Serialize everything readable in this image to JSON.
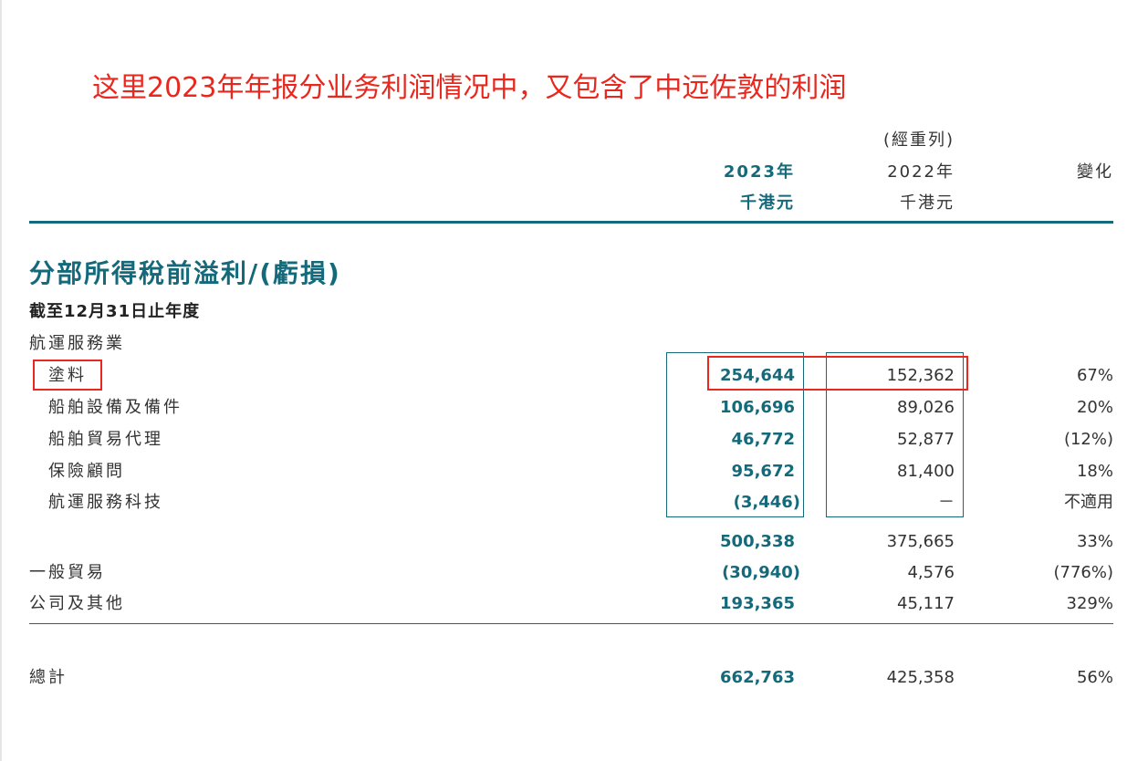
{
  "annotation": "这里2023年年报分业务利润情况中，又包含了中远佐敦的利润",
  "columns": {
    "restated_note": "(經重列)",
    "current": {
      "year": "2023年",
      "unit": "千港元"
    },
    "prior": {
      "year": "2022年",
      "unit": "千港元"
    },
    "change": "變化"
  },
  "section": {
    "title": "分部所得稅前溢利/(虧損)",
    "subtitle": "截至12月31日止年度"
  },
  "rows": [
    {
      "label": "航運服務業",
      "current": "",
      "prior": "",
      "change": ""
    },
    {
      "label": "塗料",
      "current": "254,644",
      "prior": "152,362",
      "change": "67%"
    },
    {
      "label": "船舶設備及備件",
      "current": "106,696",
      "prior": "89,026",
      "change": "20%"
    },
    {
      "label": "船舶貿易代理",
      "current": "46,772",
      "prior": "52,877",
      "change": "(12%)"
    },
    {
      "label": "保險顧問",
      "current": "95,672",
      "prior": "81,400",
      "change": "18%"
    },
    {
      "label": "航運服務科技",
      "current": "(3,446)",
      "prior": "－",
      "change": "不適用"
    },
    {
      "label": "",
      "current": "500,338",
      "prior": "375,665",
      "change": "33%"
    },
    {
      "label": "一般貿易",
      "current": "(30,940)",
      "prior": "4,576",
      "change": "(776%)"
    },
    {
      "label": "公司及其他",
      "current": "193,365",
      "prior": "45,117",
      "change": "329%"
    },
    {
      "label": "總計",
      "current": "662,763",
      "prior": "425,358",
      "change": "56%"
    }
  ]
}
